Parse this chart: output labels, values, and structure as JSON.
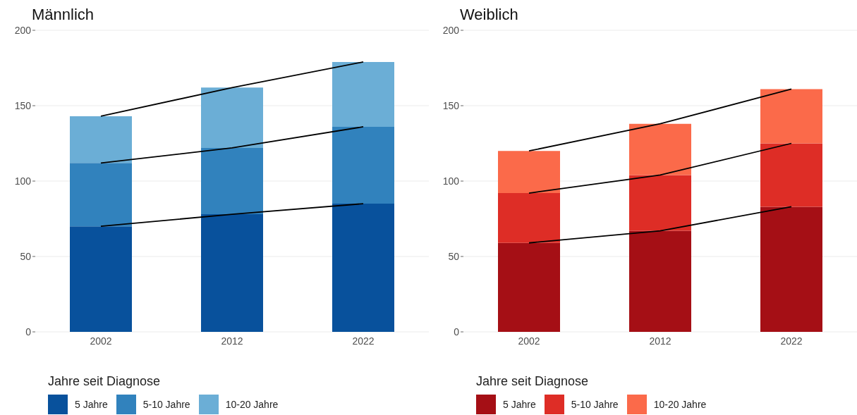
{
  "chart_data": [
    {
      "type": "bar",
      "title": "Männlich",
      "legend_title": "Jahre seit Diagnose",
      "categories": [
        "2002",
        "2012",
        "2022"
      ],
      "stacked": true,
      "ylim": [
        0,
        200
      ],
      "yticks": [
        0,
        50,
        100,
        150,
        200
      ],
      "grid": "y",
      "legend": "bottom",
      "series": [
        {
          "name": "5 Jahre",
          "color": "#08519c",
          "values": [
            70,
            78,
            85
          ]
        },
        {
          "name": "5-10 Jahre",
          "color": "#3182bd",
          "values": [
            42,
            44,
            51
          ]
        },
        {
          "name": "10-20 Jahre",
          "color": "#6baed6",
          "values": [
            31,
            40,
            43
          ]
        },
        {
          "type": "line",
          "color": "#000000",
          "values": [
            70,
            78,
            85
          ]
        },
        {
          "type": "line",
          "color": "#000000",
          "values": [
            112,
            122,
            136
          ]
        },
        {
          "type": "line",
          "color": "#000000",
          "values": [
            143,
            162,
            179
          ]
        }
      ]
    },
    {
      "type": "bar",
      "title": "Weiblich",
      "legend_title": "Jahre seit Diagnose",
      "categories": [
        "2002",
        "2012",
        "2022"
      ],
      "stacked": true,
      "ylim": [
        0,
        200
      ],
      "yticks": [
        0,
        50,
        100,
        150,
        200
      ],
      "grid": "y",
      "legend": "bottom",
      "series": [
        {
          "name": "5 Jahre",
          "color": "#a50f15",
          "values": [
            59,
            67,
            83
          ]
        },
        {
          "name": "5-10 Jahre",
          "color": "#de2d26",
          "values": [
            33,
            37,
            42
          ]
        },
        {
          "name": "10-20 Jahre",
          "color": "#fb6a4a",
          "values": [
            28,
            34,
            36
          ]
        },
        {
          "type": "line",
          "color": "#000000",
          "values": [
            59,
            67,
            83
          ]
        },
        {
          "type": "line",
          "color": "#000000",
          "values": [
            92,
            104,
            125
          ]
        },
        {
          "type": "line",
          "color": "#000000",
          "values": [
            120,
            138,
            161
          ]
        }
      ]
    }
  ]
}
